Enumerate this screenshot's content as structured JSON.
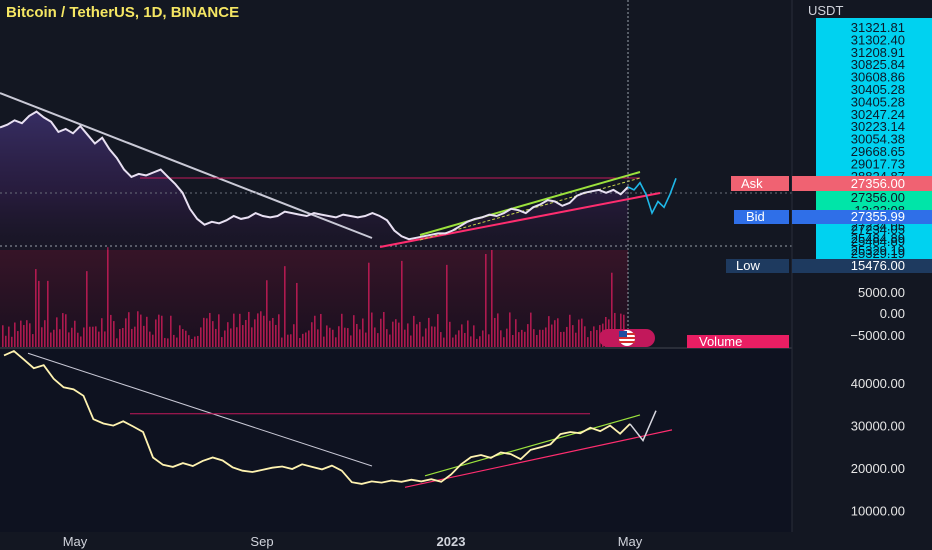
{
  "header": {
    "title": "Bitcoin / TetherUS, 1D, BINANCE",
    "axis_currency": "USDT"
  },
  "colors": {
    "background": "#131722",
    "price_line_upper": "#e8e0f2",
    "price_line_lower": "#fff3b0",
    "trendline": "#c9c9d6",
    "support_line": "#ff2d6f",
    "upper_channel": "#9be13c",
    "resistance_hline": "#c2185b",
    "projection": "#1fb8e8",
    "cyan_label_bg": "#00d2f0",
    "ask": "#f06272",
    "bid": "#2f6fe8",
    "low": "#1e3a5f",
    "volume": "#e91e63",
    "volume_label": "#e91e63"
  },
  "chart_data": [
    {
      "type": "line",
      "name": "upper-pane",
      "price_scale_labels": [
        "31321.81",
        "31302.40",
        "31208.91",
        "30825.84",
        "30608.86",
        "30405.28",
        "30405.28",
        "30247.24",
        "30223.14",
        "30054.38",
        "29668.65",
        "29017.73",
        "28824.87",
        "27356.00",
        "13:23:08",
        "27355.99",
        "27234.05",
        "25484.89",
        "25329.19",
        "15476.00"
      ],
      "tags": {
        "ask_label": "Ask",
        "ask_value": "27356.00",
        "bid_label": "Bid",
        "bid_value": "27355.99",
        "low_label": "Low",
        "low_value": "15476.00",
        "current_price": "27356.00",
        "countdown": "13:23:08"
      },
      "volume_scale_labels": [
        "5000.00",
        "0.00",
        "−5000.00"
      ],
      "volume_label": "Volume",
      "series_relative": [
        0.81,
        0.83,
        0.86,
        0.84,
        0.89,
        0.92,
        0.88,
        0.85,
        0.78,
        0.8,
        0.77,
        0.82,
        0.76,
        0.7,
        0.74,
        0.66,
        0.6,
        0.52,
        0.47,
        0.49,
        0.48,
        0.5,
        0.52,
        0.47,
        0.42,
        0.36,
        0.25,
        0.18,
        0.14,
        0.16,
        0.15,
        0.17,
        0.2,
        0.18,
        0.19,
        0.22,
        0.2,
        0.19,
        0.2,
        0.23,
        0.22,
        0.21,
        0.2,
        0.22,
        0.21,
        0.2,
        0.19,
        0.21,
        0.2,
        0.19,
        0.2,
        0.22,
        0.2,
        0.17,
        0.1,
        0.06,
        0.04,
        0.05,
        0.06,
        0.07,
        0.08,
        0.08,
        0.1,
        0.13,
        0.16,
        0.18,
        0.19,
        0.21,
        0.2,
        0.22,
        0.25,
        0.24,
        0.22,
        0.26,
        0.28,
        0.31,
        0.3,
        0.27,
        0.29,
        0.34,
        0.36,
        0.37,
        0.38,
        0.36,
        0.38,
        0.35,
        0.4
      ],
      "projection_relative": [
        0.4,
        0.38,
        0.43,
        0.35,
        0.22,
        0.3,
        0.26,
        0.35,
        0.46
      ]
    },
    {
      "type": "line",
      "name": "lower-pane",
      "y_ticks": [
        "40000.00",
        "30000.00",
        "20000.00",
        "10000.00"
      ],
      "ylim": [
        5000,
        48000
      ],
      "x_ticks": [
        "May",
        "Sep",
        "2023",
        "May"
      ],
      "x_ticks_bold": [
        "2023"
      ],
      "series": [
        46500,
        47500,
        45500,
        43500,
        44200,
        41000,
        39000,
        38500,
        37000,
        31500,
        30500,
        30000,
        31000,
        29800,
        28500,
        22500,
        20800,
        20300,
        21200,
        20500,
        21700,
        22500,
        21800,
        20200,
        19400,
        19100,
        19600,
        20100,
        20400,
        19800,
        20900,
        20300,
        19700,
        20600,
        19400,
        16700,
        16300,
        16900,
        16600,
        17100,
        16800,
        17300,
        16900,
        17400,
        16800,
        18500,
        20900,
        22600,
        23100,
        22400,
        23700,
        23300,
        22100,
        24300,
        24900,
        25600,
        28000,
        28500,
        28200,
        29500,
        28700,
        30000,
        28100,
        30400
      ],
      "projection": [
        30400,
        26500,
        33500
      ],
      "trend_start": 47000,
      "trend_end": 20500,
      "hline": 32800
    }
  ]
}
